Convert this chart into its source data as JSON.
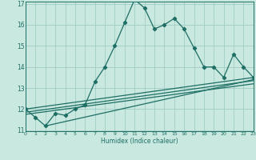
{
  "xlabel": "Humidex (Indice chaleur)",
  "xlim": [
    0,
    23
  ],
  "ylim": [
    11,
    17
  ],
  "yticks": [
    11,
    12,
    13,
    14,
    15,
    16,
    17
  ],
  "xticks": [
    0,
    1,
    2,
    3,
    4,
    5,
    6,
    7,
    8,
    9,
    10,
    11,
    12,
    13,
    14,
    15,
    16,
    17,
    18,
    19,
    20,
    21,
    22,
    23
  ],
  "bg_color": "#c8e8e0",
  "line_color": "#1e6e64",
  "grid_color": "#a0ccc4",
  "main_x": [
    0,
    1,
    2,
    3,
    4,
    5,
    6,
    7,
    8,
    9,
    10,
    11,
    12,
    13,
    14,
    15,
    16,
    17,
    18,
    19,
    20,
    21,
    22,
    23
  ],
  "main_y": [
    12.0,
    11.6,
    11.2,
    11.8,
    11.7,
    12.0,
    12.2,
    13.3,
    14.0,
    15.0,
    16.1,
    17.2,
    16.8,
    15.8,
    16.0,
    16.3,
    15.8,
    14.9,
    14.0,
    14.0,
    13.5,
    14.6,
    14.0,
    13.5
  ],
  "linear_lines": [
    {
      "x": [
        0,
        23
      ],
      "y": [
        12.0,
        13.5
      ]
    },
    {
      "x": [
        0,
        23
      ],
      "y": [
        11.85,
        13.35
      ]
    },
    {
      "x": [
        0,
        23
      ],
      "y": [
        11.75,
        13.2
      ]
    },
    {
      "x": [
        2,
        23
      ],
      "y": [
        11.2,
        13.4
      ]
    }
  ]
}
